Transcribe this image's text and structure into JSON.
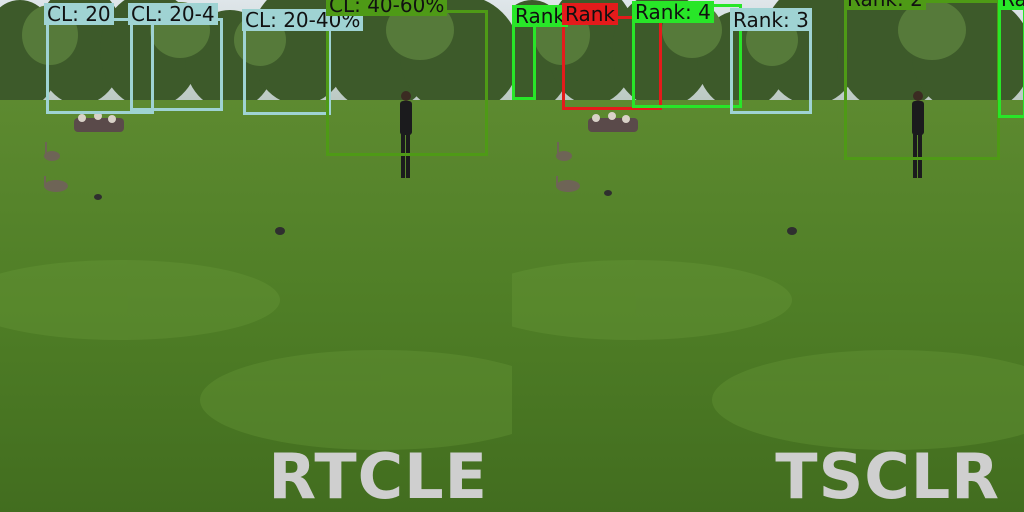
{
  "colors": {
    "cyan_box": "#9fd3d3",
    "olive_box": "#4e9a16",
    "bright_green_box": "#28e628",
    "red_box": "#e41b1b",
    "caption_text": "#cfcfcf"
  },
  "left_panel": {
    "caption": "RTCLE",
    "labels": {
      "box1": "CL: 20",
      "box2": "CL: 20-4",
      "box3": "CL: 20-40%",
      "box4": "CL: 40-60%"
    }
  },
  "right_panel": {
    "caption": "TSCLR",
    "labels": {
      "box1": "Rank",
      "box2": "Rank",
      "box3": "Rank: 4",
      "box4": "Rank: 3",
      "box5": "Rank: 2",
      "box6": "Ra"
    }
  }
}
